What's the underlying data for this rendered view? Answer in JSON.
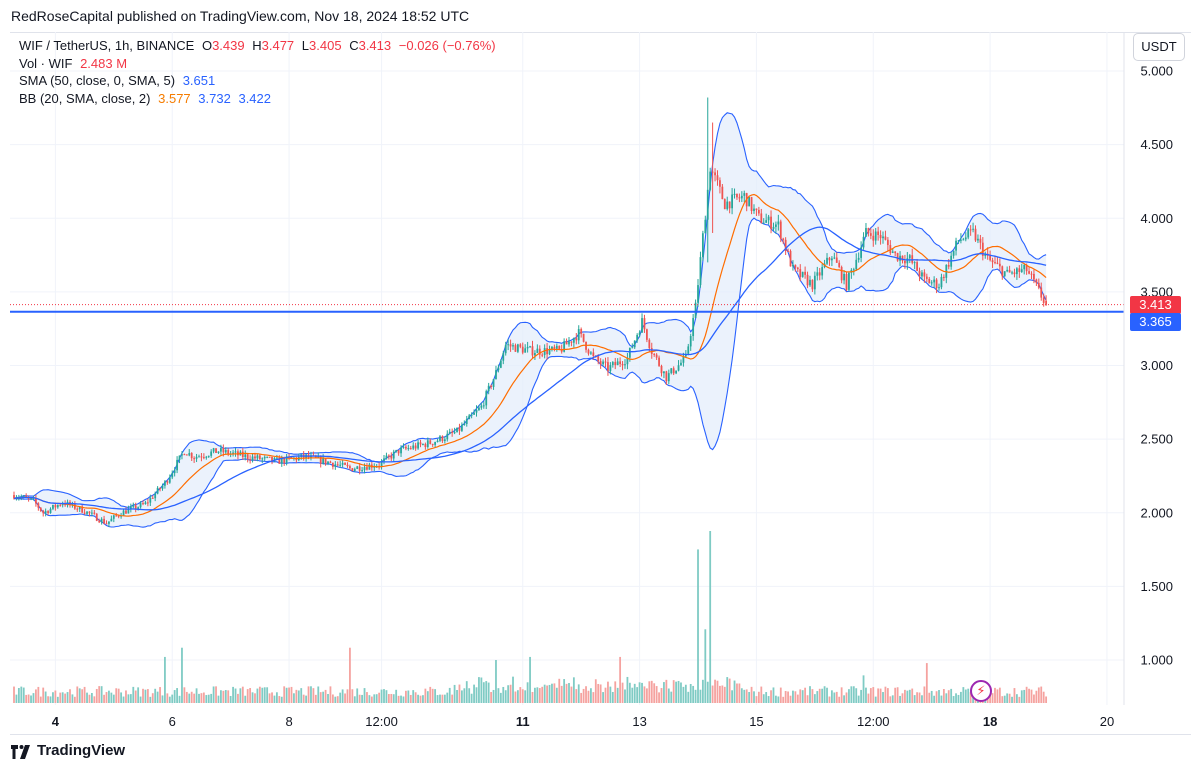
{
  "publisher_line": "RedRoseCapital published on TradingView.com, Nov 18, 2024 18:52 UTC",
  "footer_brand": "TradingView",
  "currency_button": "USDT",
  "legend": {
    "symbol": "WIF / TetherUS, 1h, BINANCE",
    "o_key": "O",
    "o_val": "3.439",
    "h_key": "H",
    "h_val": "3.477",
    "l_key": "L",
    "l_val": "3.405",
    "c_key": "C",
    "c_val": "3.413",
    "change": "−0.026 (−0.76%)",
    "vol_label": "Vol · WIF",
    "vol_val": "2.483 M",
    "sma_label": "SMA (50, close, 0, SMA, 5)",
    "sma_val": "3.651",
    "bb_label": "BB (20, SMA, close, 2)",
    "bb_basis": "3.577",
    "bb_upper": "3.732",
    "bb_lower": "3.422"
  },
  "price_tags": {
    "last": "3.413",
    "line": "3.365"
  },
  "colors": {
    "up": "#26a69a",
    "down": "#ef5350",
    "up_vol": "#7fcbc4",
    "down_vol": "#f5a29f",
    "bb_band": "#2962ff",
    "bb_fill": "#e3ecfb",
    "bb_basis": "#ff6d00",
    "sma": "#2962ff",
    "hline": "#2962ff",
    "last_price": "#f23645",
    "grid": "#f0f3fa"
  },
  "chart_data": {
    "type": "candlestick",
    "symbol": "WIF / TetherUS",
    "interval": "1h",
    "y_axis_ticks": [
      "5.000",
      "4.500",
      "4.000",
      "3.500",
      "3.000",
      "2.500",
      "2.000",
      "1.500",
      "1.000"
    ],
    "ylim": [
      0.7,
      5.2
    ],
    "x_axis_ticks": [
      "4",
      "6",
      "8",
      "12:00",
      "11",
      "13",
      "15",
      "12:00",
      "18",
      "20"
    ],
    "x_tick_bold": [
      true,
      false,
      false,
      false,
      true,
      false,
      false,
      false,
      true,
      false
    ],
    "x_tick_positions_bars": [
      17,
      65,
      113,
      151,
      209,
      257,
      305,
      353,
      401,
      449
    ],
    "last_price": 3.413,
    "horizontal_line": 3.365,
    "price_path": [
      [
        0,
        2.12
      ],
      [
        8,
        2.08
      ],
      [
        12,
        2.0
      ],
      [
        20,
        2.07
      ],
      [
        28,
        2.02
      ],
      [
        38,
        1.93
      ],
      [
        44,
        2.0
      ],
      [
        54,
        2.06
      ],
      [
        62,
        2.2
      ],
      [
        70,
        2.42
      ],
      [
        74,
        2.38
      ],
      [
        84,
        2.42
      ],
      [
        96,
        2.38
      ],
      [
        108,
        2.35
      ],
      [
        120,
        2.38
      ],
      [
        130,
        2.34
      ],
      [
        138,
        2.3
      ],
      [
        150,
        2.33
      ],
      [
        158,
        2.42
      ],
      [
        172,
        2.48
      ],
      [
        182,
        2.55
      ],
      [
        192,
        2.72
      ],
      [
        198,
        2.95
      ],
      [
        202,
        3.14
      ],
      [
        212,
        3.1
      ],
      [
        224,
        3.1
      ],
      [
        232,
        3.22
      ],
      [
        238,
        3.05
      ],
      [
        244,
        2.98
      ],
      [
        252,
        3.05
      ],
      [
        258,
        3.3
      ],
      [
        262,
        3.1
      ],
      [
        268,
        2.92
      ],
      [
        276,
        3.05
      ],
      [
        280,
        3.4
      ],
      [
        286,
        4.35
      ],
      [
        292,
        4.1
      ],
      [
        300,
        4.15
      ],
      [
        306,
        4.0
      ],
      [
        314,
        3.95
      ],
      [
        320,
        3.65
      ],
      [
        328,
        3.55
      ],
      [
        336,
        3.75
      ],
      [
        342,
        3.55
      ],
      [
        350,
        3.9
      ],
      [
        356,
        3.88
      ],
      [
        362,
        3.75
      ],
      [
        368,
        3.72
      ],
      [
        374,
        3.58
      ],
      [
        380,
        3.55
      ],
      [
        388,
        3.85
      ],
      [
        394,
        3.9
      ],
      [
        400,
        3.72
      ],
      [
        408,
        3.62
      ],
      [
        416,
        3.65
      ],
      [
        424,
        3.413
      ]
    ],
    "spikes": [
      [
        285,
        4.82,
        3.7
      ],
      [
        287,
        4.65,
        3.9
      ]
    ],
    "volume_peaks": [
      [
        281,
        1.72
      ],
      [
        286,
        1.84
      ],
      [
        284,
        1.2
      ],
      [
        212,
        1.02
      ],
      [
        198,
        1.0
      ],
      [
        249,
        1.02
      ],
      [
        62,
        1.02
      ],
      [
        69,
        1.08
      ],
      [
        138,
        1.08
      ],
      [
        375,
        0.98
      ],
      [
        349,
        0.9
      ]
    ],
    "series": [
      {
        "name": "SMA (50, close, 0, SMA, 5)",
        "last": 3.651
      },
      {
        "name": "BB (20, SMA, close, 2)",
        "basis": 3.577,
        "upper": 3.732,
        "lower": 3.422
      }
    ],
    "grid": true,
    "legend_position": "top-left"
  }
}
